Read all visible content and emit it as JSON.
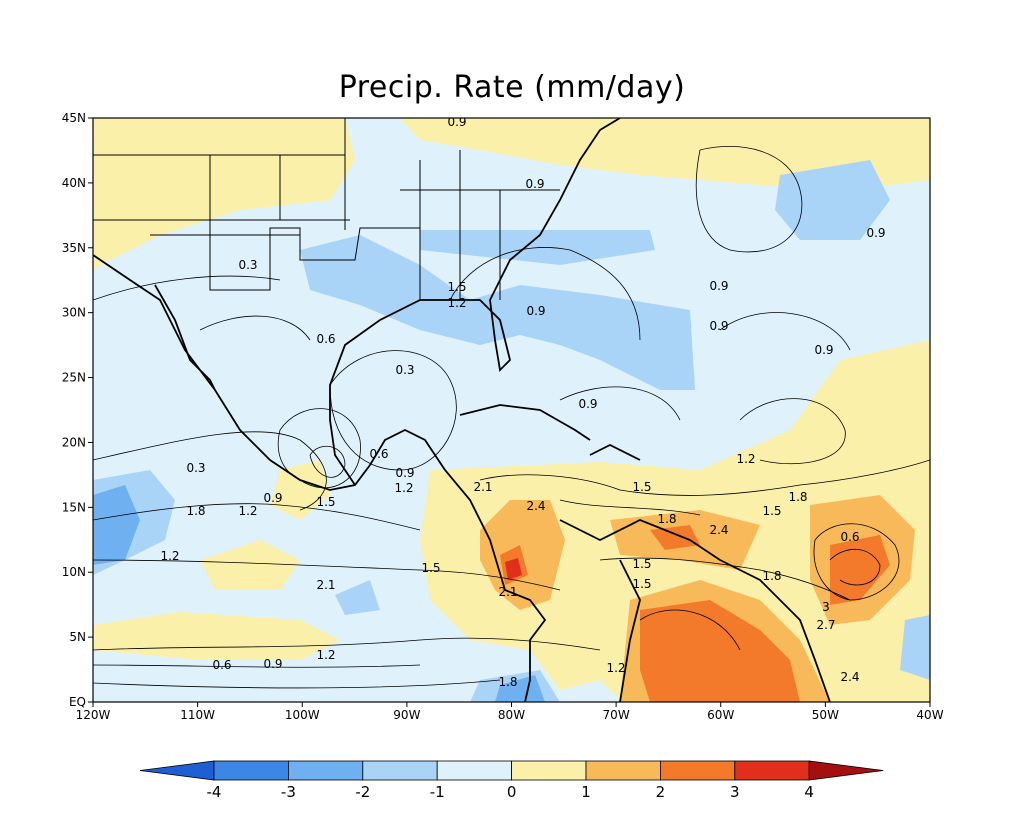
{
  "title": "Precip. Rate (mm/day)",
  "axes": {
    "lat_labels": [
      "45N",
      "40N",
      "35N",
      "30N",
      "25N",
      "20N",
      "15N",
      "10N",
      "5N",
      "EQ"
    ],
    "lon_labels": [
      "120W",
      "110W",
      "100W",
      "90W",
      "80W",
      "70W",
      "60W",
      "50W",
      "40W"
    ]
  },
  "colorbar": {
    "ticks": [
      "-4",
      "-3",
      "-2",
      "-1",
      "0",
      "1",
      "2",
      "3",
      "4"
    ],
    "colors": [
      "#1f5fd6",
      "#3c86e6",
      "#6eb0f0",
      "#a9d3f7",
      "#dff2fb",
      "#fbf0aa",
      "#f8b95a",
      "#f27a2a",
      "#e0301c",
      "#a50f0f"
    ]
  },
  "contour_labels": [
    "0.9",
    "0.9",
    "0.9",
    "0.3",
    "1.5",
    "1.2",
    "0.9",
    "0.9",
    "0.9",
    "0.9",
    "0.6",
    "0.3",
    "0.9",
    "0.6",
    "0.3",
    "0.9",
    "1.2",
    "0.9",
    "1.2",
    "1.5",
    "1.8",
    "1.5",
    "2.1",
    "2.4",
    "1.8",
    "1.2",
    "1.5",
    "1.8",
    "2.4",
    "0.6",
    "1.2",
    "1.5",
    "1.5",
    "2.1",
    "2.1",
    "1.8",
    "1.5",
    "3",
    "2.7",
    "1.2",
    "0.6",
    "0.9",
    "1.2",
    "1.8",
    "2.4"
  ]
}
